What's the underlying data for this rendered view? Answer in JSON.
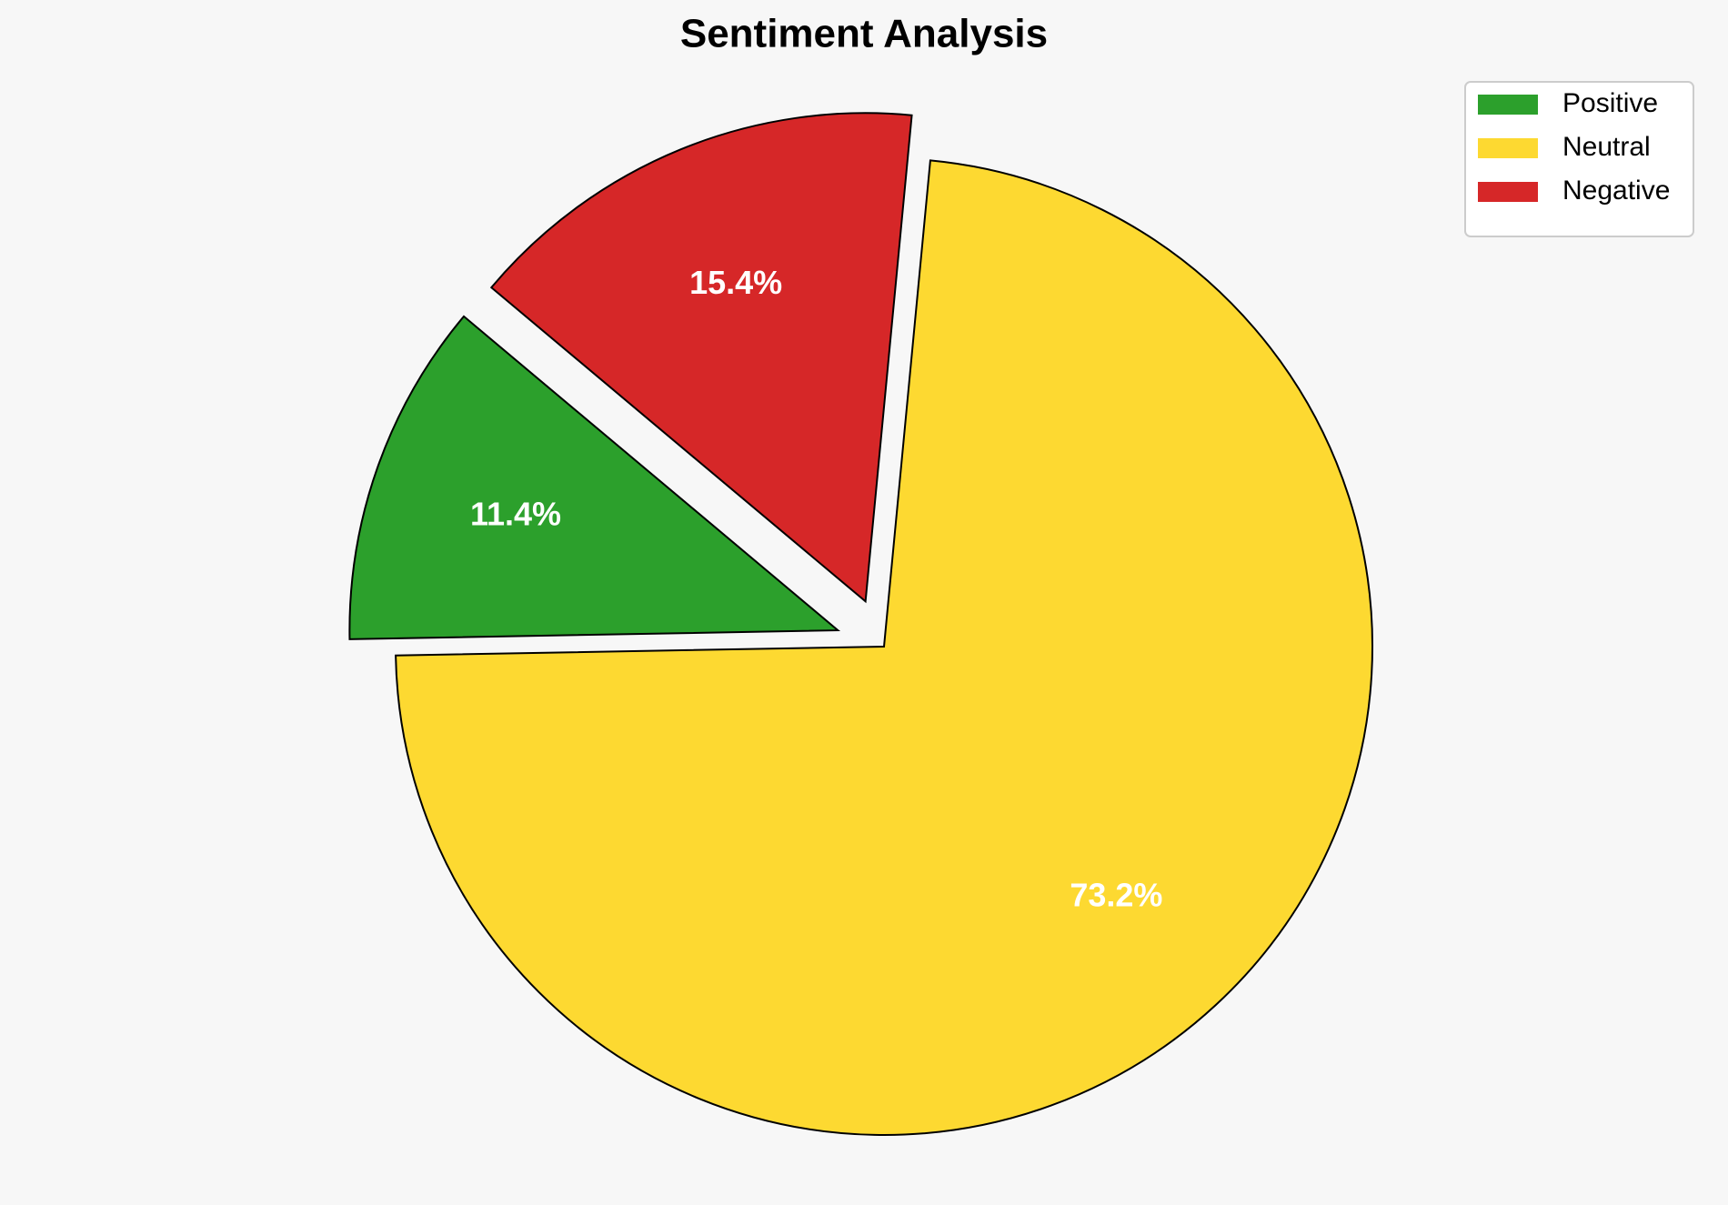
{
  "chart_data": {
    "type": "pie",
    "title": "Sentiment Analysis",
    "categories": [
      "Positive",
      "Neutral",
      "Negative"
    ],
    "values": [
      11.4,
      73.2,
      15.4
    ],
    "value_labels": [
      "11.4%",
      "73.2%",
      "15.4%"
    ],
    "colors": [
      "#2ca02c",
      "#fdd931",
      "#d62728"
    ],
    "legend": "upper right"
  }
}
